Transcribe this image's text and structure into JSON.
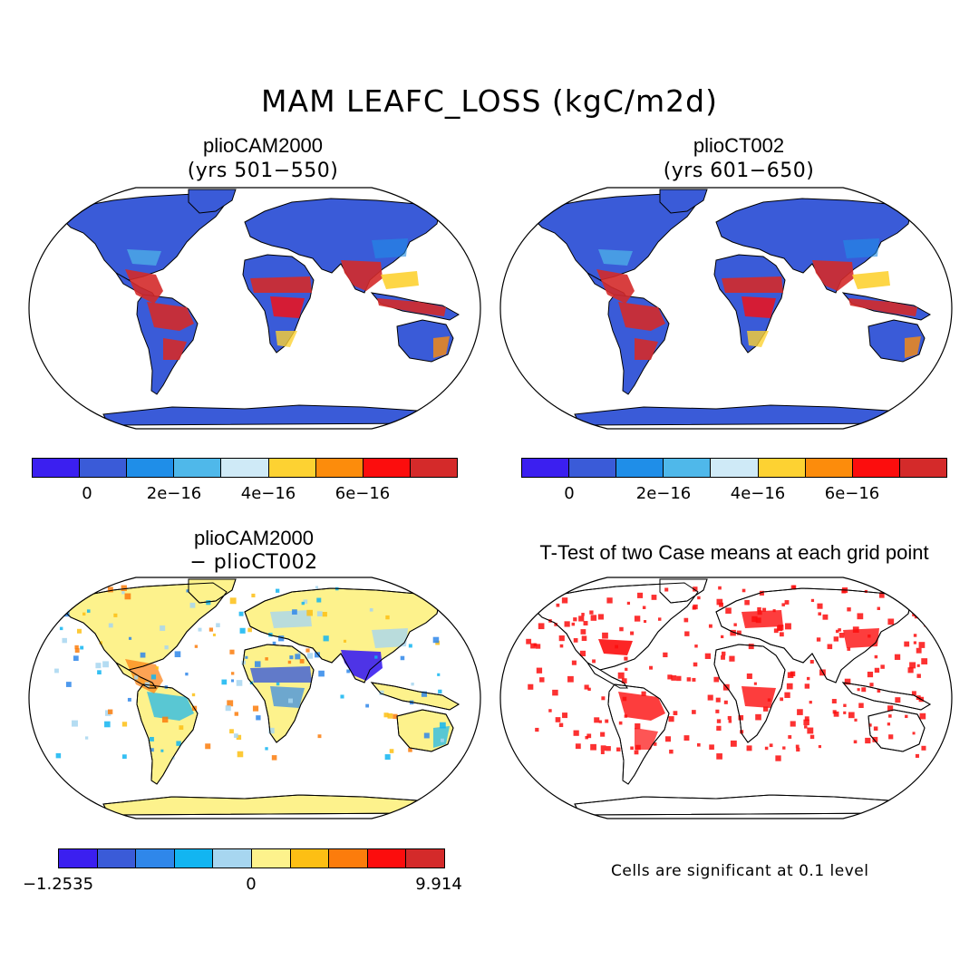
{
  "figure": {
    "main_title": "MAM LEAFC_LOSS (kgC/m2d)"
  },
  "panels": {
    "top_left": {
      "title": "plioCAM2000",
      "subtitle": "(yrs 501−550)"
    },
    "top_right": {
      "title": "plioCT002",
      "subtitle": "(yrs 601−650)"
    },
    "bottom_left": {
      "title": "plioCAM2000",
      "subtitle": "− plioCT002"
    },
    "bottom_right": {
      "title": "T-Test of two Case means at each grid point",
      "note": "Cells are significant at 0.1 level"
    }
  },
  "colorbars": {
    "top": {
      "colors": [
        "#3b1ff0",
        "#3a5bd8",
        "#1f8ee8",
        "#4fb8ea",
        "#cfeaf7",
        "#fdd232",
        "#fc8c0c",
        "#fc0d0d",
        "#d42a2a"
      ],
      "ticks": [
        "0",
        "2e−16",
        "4e−16",
        "6e−16"
      ]
    },
    "bottom": {
      "colors": [
        "#3b1ff0",
        "#3a5bd8",
        "#2f87ea",
        "#12b5f1",
        "#a7d6f0",
        "#fdf28c",
        "#fdbf14",
        "#fc7c0c",
        "#fc0d0d",
        "#d42a2a"
      ],
      "ticks": [
        "−1.2535",
        "0",
        "9.914"
      ]
    }
  },
  "chart_data": [
    {
      "type": "heatmap",
      "title": "plioCAM2000 (yrs 501−550)",
      "projection": "Robinson",
      "legend_ticks": [
        "0",
        "2e−16",
        "4e−16",
        "6e−16"
      ]
    },
    {
      "type": "heatmap",
      "title": "plioCT002 (yrs 601−650)",
      "projection": "Robinson",
      "legend_ticks": [
        "0",
        "2e−16",
        "4e−16",
        "6e−16"
      ]
    },
    {
      "type": "heatmap",
      "title": "plioCAM2000 − plioCT002",
      "projection": "Robinson",
      "legend_min": -1.2535,
      "legend_zero": 0,
      "legend_max": 9.914
    },
    {
      "type": "heatmap",
      "title": "T-Test of two Case means at each grid point",
      "projection": "Robinson",
      "significance_level": 0.1
    }
  ]
}
